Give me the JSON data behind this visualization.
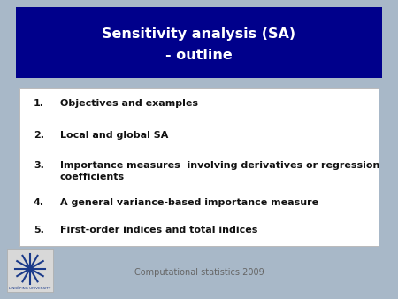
{
  "title_line1": "Sensitivity analysis (SA)",
  "title_line2": "- outline",
  "title_bg_color": "#00008B",
  "title_text_color": "#FFFFFF",
  "slide_bg_color": "#A8B8C8",
  "content_bg_color": "#FFFFFF",
  "content_border_color": "#BBBBBB",
  "items": [
    "Objectives and examples",
    "Local and global SA",
    "Importance measures  involving derivatives or regression\ncoefficients",
    "A general variance-based importance measure",
    "First-order indices and total indices"
  ],
  "footer_text": "Computational statistics 2009",
  "footer_color": "#666666",
  "item_text_color": "#111111",
  "item_number_color": "#111111",
  "logo_color": "#1a3a8a",
  "logo_bg": "#D8D8D8"
}
